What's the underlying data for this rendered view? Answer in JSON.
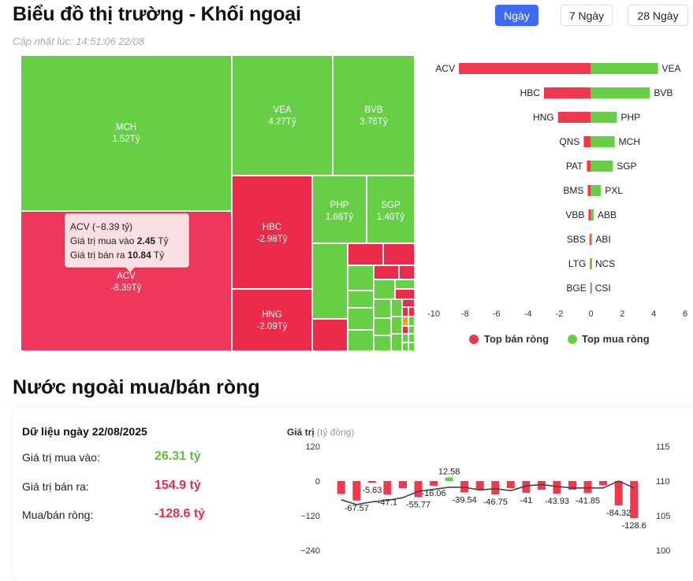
{
  "header": {
    "title": "Biểu đồ thị trường - Khối ngoại",
    "updated": "Cập nhật lúc: 14:51:06 22/08"
  },
  "tabs": [
    {
      "label": "Ngày",
      "active": true
    },
    {
      "label": "7 Ngày",
      "active": false
    },
    {
      "label": "28 Ngày",
      "active": false
    }
  ],
  "colors": {
    "buy": "#66cf46",
    "sell": "#f0384f",
    "neutral": "#e5a51f",
    "accent": "#3d6af0"
  },
  "treemap": {
    "tiles": [
      {
        "code": "MCH",
        "value_text": "1.52Tỷ",
        "side": "buy"
      },
      {
        "code": "VEA",
        "value_text": "4.27Tỷ",
        "side": "buy"
      },
      {
        "code": "BVB",
        "value_text": "3.76Tỷ",
        "side": "buy"
      },
      {
        "code": "ACV",
        "value_text": "-8.39Tỷ",
        "side": "sell"
      },
      {
        "code": "HBC",
        "value_text": "-2.98Tỷ",
        "side": "sell"
      },
      {
        "code": "PHP",
        "value_text": "1.66Tỷ",
        "side": "buy"
      },
      {
        "code": "SGP",
        "value_text": "1.40Tỷ",
        "side": "buy"
      },
      {
        "code": "HNG",
        "value_text": "-2.09Tỷ",
        "side": "sell"
      }
    ],
    "tooltip": {
      "title": "ACV (−8.39 tỷ)",
      "buy_label": "Giá trị mua vào",
      "buy_value": "2.45",
      "sell_label": "Giá trị bán ra",
      "sell_value": "10.84",
      "unit": "Tỷ"
    }
  },
  "chart_data": [
    {
      "type": "bar",
      "orientation": "horizontal",
      "xlim": [
        -10,
        6
      ],
      "xticks": [
        "-10",
        "-8",
        "-6",
        "-4",
        "-2",
        "0",
        "2",
        "4",
        "6"
      ],
      "series": [
        {
          "name": "Top bán ròng",
          "color": "#f0384f",
          "categories": [
            "ACV",
            "HBC",
            "HNG",
            "QNS",
            "PAT",
            "BMS",
            "VBB",
            "SBS",
            "LTG",
            "BGE"
          ],
          "values": [
            -8.39,
            -2.98,
            -2.09,
            -0.45,
            -0.25,
            -0.2,
            -0.15,
            -0.08,
            -0.05,
            -0.03
          ]
        },
        {
          "name": "Top mua ròng",
          "color": "#66cf46",
          "categories": [
            "VEA",
            "BVB",
            "PHP",
            "MCH",
            "SGP",
            "PXL",
            "ABB",
            "ABI",
            "NCS",
            "CSI"
          ],
          "values": [
            4.27,
            3.76,
            1.66,
            1.52,
            1.4,
            0.65,
            0.18,
            0.05,
            0.03,
            0.02
          ]
        }
      ],
      "legend": "bottom"
    },
    {
      "type": "bar",
      "ylabel": "Giá trị",
      "yunit": "(tỷ đồng)",
      "ylim": [
        -240,
        120
      ],
      "yticks": [
        "120",
        "0",
        "−120",
        "−240"
      ],
      "y2lim": [
        100,
        115
      ],
      "y2ticks": [
        "115",
        "110",
        "105",
        "100"
      ],
      "values": [
        -45,
        -67.57,
        -5.63,
        -47.1,
        -25,
        -55.77,
        -16.06,
        12.58,
        -39.54,
        -30,
        -46.75,
        -25,
        -41,
        -30,
        -43.93,
        -30,
        -41.85,
        -15,
        -84.32,
        -128.6
      ],
      "labels": [
        "",
        "-67.57",
        "-5.63",
        "-47.1",
        "",
        "-55.77",
        "-16.06",
        "12.58",
        "-39.54",
        "",
        "-46.75",
        "",
        "-41",
        "",
        "-43.93",
        "",
        "-41.85",
        "",
        "-84.32",
        "-128.6"
      ],
      "line_values": [
        107.3,
        106.6,
        107.0,
        107.2,
        107.6,
        108.5,
        108.8,
        109.1,
        109.1,
        108.7,
        108.9,
        108.6,
        109.3,
        109.5,
        109.2,
        109.0,
        109.0,
        109.0,
        110.0,
        109.0
      ]
    }
  ],
  "summary": {
    "date_label": "Dữ liệu ngày 22/08/2025",
    "buy_label": "Giá trị mua vào:",
    "buy_value": "26.31 tỷ",
    "sell_label": "Giá trị bán ra:",
    "sell_value": "154.9 tỷ",
    "net_label": "Mua/bán ròng:",
    "net_value": "-128.6 tỷ"
  },
  "section_title": "Nước ngoài mua/bán ròng"
}
